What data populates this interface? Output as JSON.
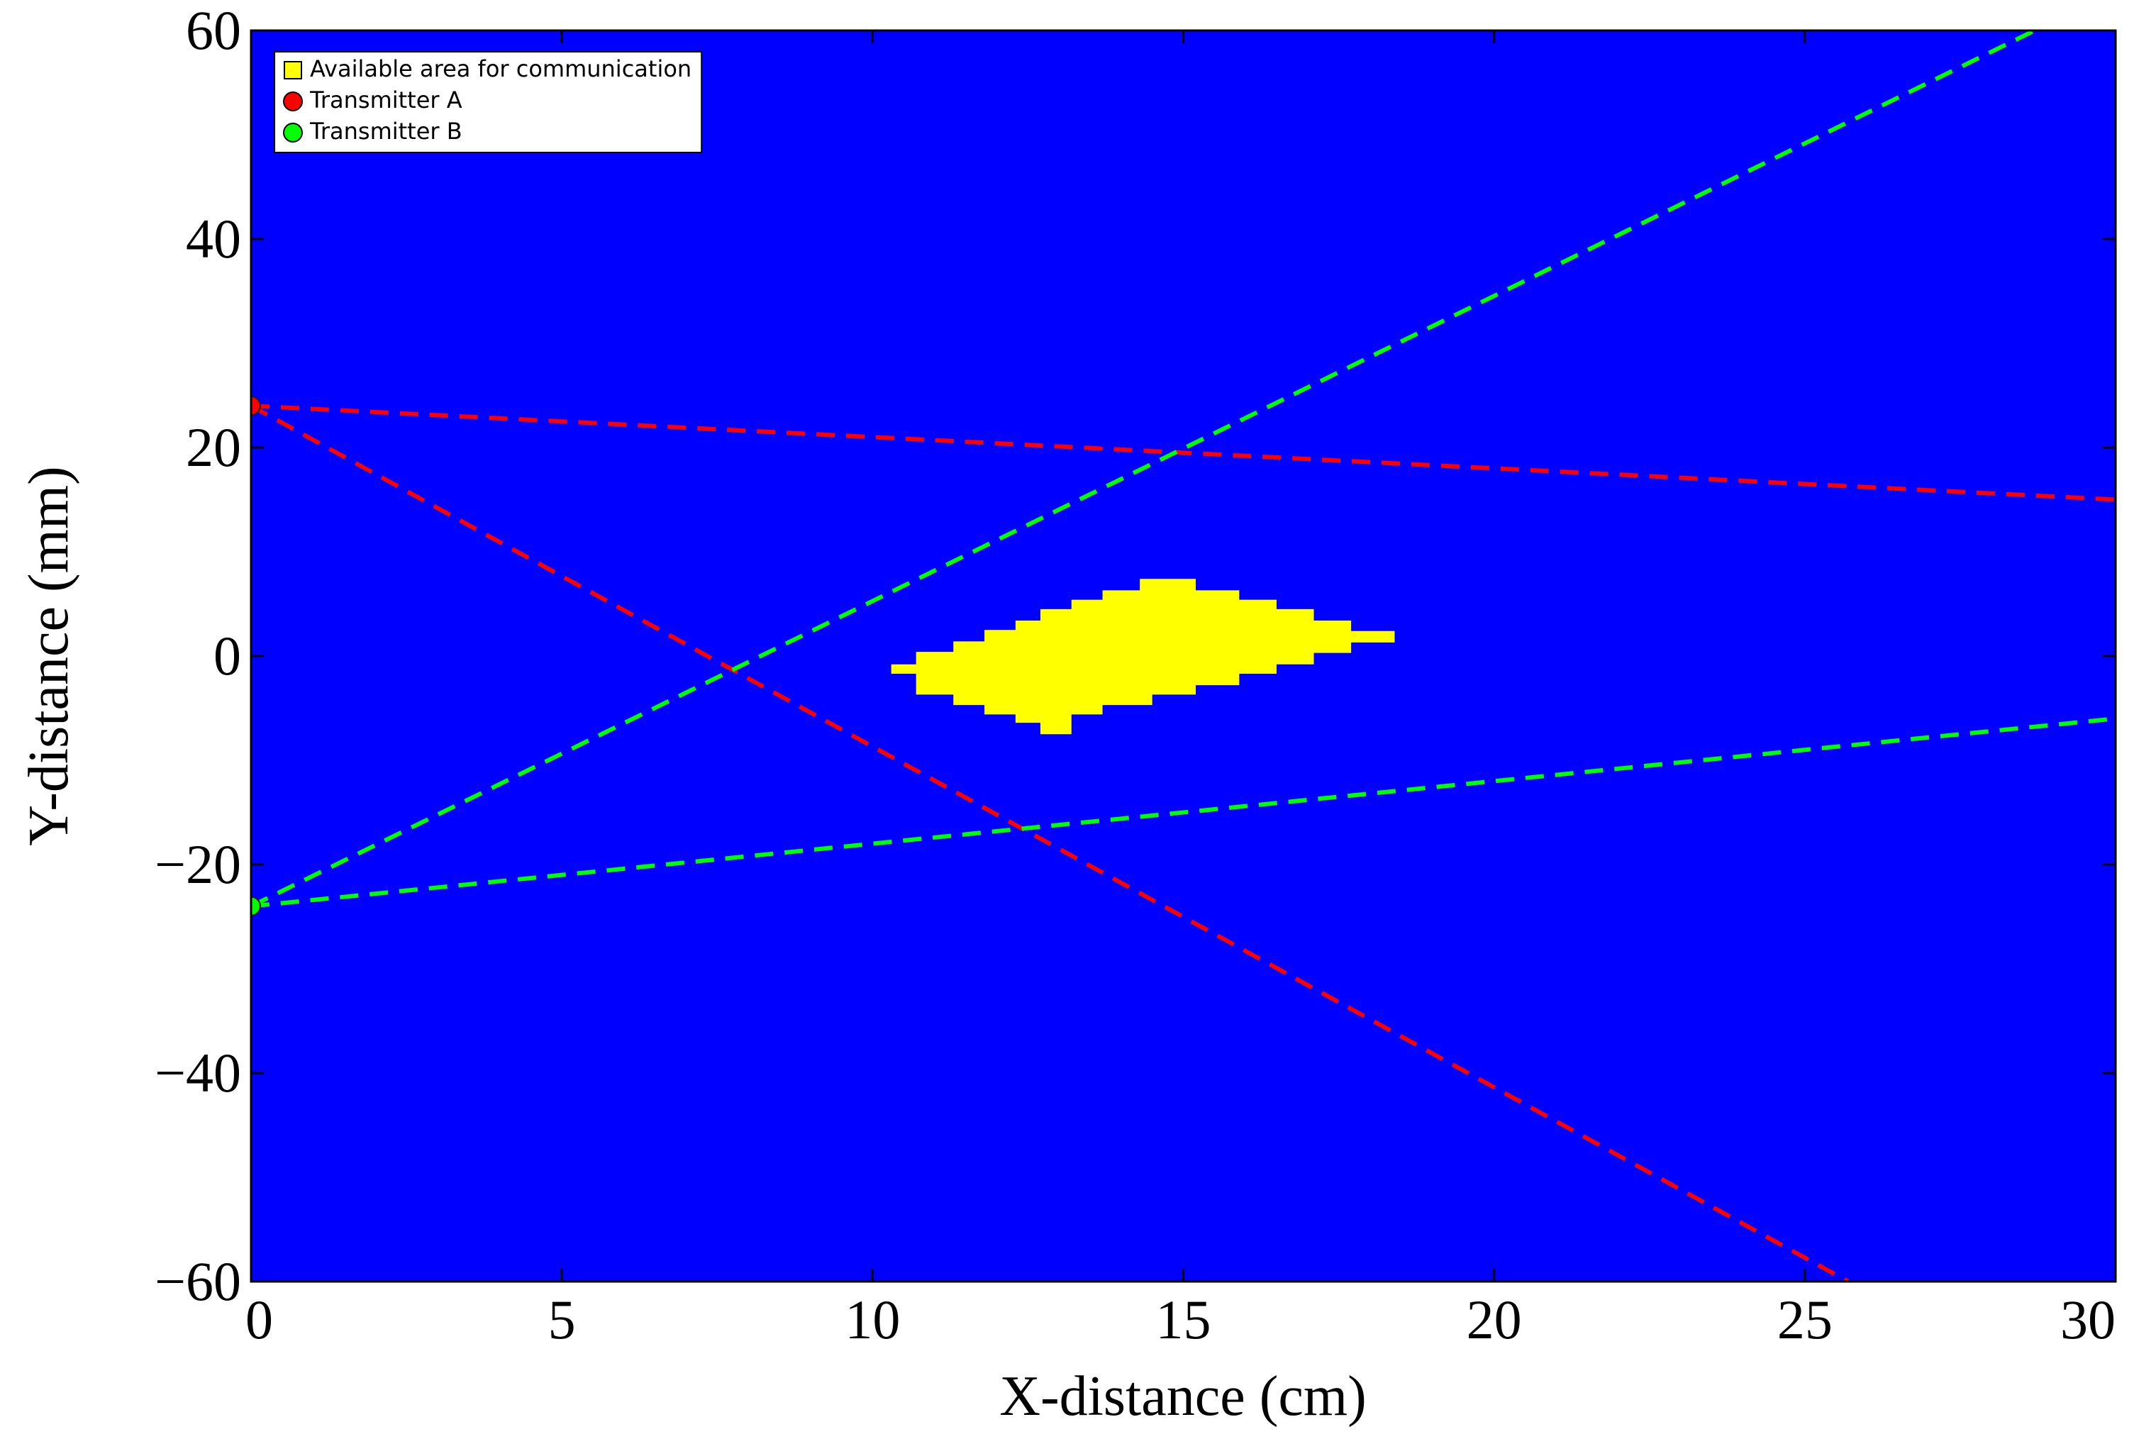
{
  "chart_data": {
    "type": "line",
    "xlabel": "X-distance (cm)",
    "ylabel": "Y-distance (mm)",
    "xlim": [
      0,
      30
    ],
    "ylim": [
      -60,
      60
    ],
    "xticks": [
      0,
      5,
      10,
      15,
      20,
      25,
      30
    ],
    "yticks": [
      {
        "value": -60,
        "label": "−60"
      },
      {
        "value": -40,
        "label": "−40"
      },
      {
        "value": -20,
        "label": "−20"
      },
      0,
      20,
      40,
      60
    ],
    "background": "#0000ff",
    "legend": "upper left",
    "series": [
      {
        "name": "Available area for communication",
        "type": "area",
        "color": "#ffff00",
        "x": [
          10.3,
          10.3,
          10.7,
          10.7,
          11.3,
          11.3,
          11.8,
          11.8,
          12.3,
          12.3,
          12.7,
          12.7,
          13.2,
          13.2,
          13.7,
          13.7,
          14.3,
          14.3,
          15.2,
          15.2,
          15.9,
          15.9,
          16.5,
          16.5,
          17.1,
          17.1,
          17.7,
          17.7,
          18.4,
          18.4,
          17.7,
          17.7,
          17.1,
          17.1,
          16.5,
          16.5,
          15.9,
          15.9,
          15.2,
          15.2,
          14.5,
          14.5,
          13.7,
          13.7,
          13.2,
          13.2,
          12.7,
          12.7,
          12.3,
          12.3,
          11.8,
          11.8,
          11.3,
          11.3,
          10.7,
          10.7
        ],
        "values": [
          -1.7,
          -0.8,
          -0.8,
          0.4,
          0.4,
          1.4,
          1.4,
          2.5,
          2.5,
          3.4,
          3.4,
          4.5,
          4.5,
          5.4,
          5.4,
          6.3,
          6.3,
          7.4,
          7.4,
          6.3,
          6.3,
          5.4,
          5.4,
          4.5,
          4.5,
          3.4,
          3.4,
          2.4,
          2.4,
          1.3,
          1.3,
          0.3,
          0.3,
          -0.8,
          -0.8,
          -1.7,
          -1.7,
          -2.8,
          -2.8,
          -3.7,
          -3.7,
          -4.7,
          -4.7,
          -5.6,
          -5.6,
          -7.5,
          -7.5,
          -6.4,
          -6.4,
          -5.6,
          -5.6,
          -4.7,
          -4.7,
          -3.7,
          -3.7,
          -1.7
        ]
      },
      {
        "name": "Transmitter A",
        "type": "scatter",
        "color": "#ff0000",
        "x": [
          0
        ],
        "values": [
          24
        ]
      },
      {
        "name": "Transmitter B",
        "type": "scatter",
        "color": "#00ff00",
        "x": [
          0
        ],
        "values": [
          -24
        ]
      },
      {
        "type": "line",
        "linestyle": "dashed",
        "color": "#ff0000",
        "x": [
          0,
          30
        ],
        "values": [
          24,
          15
        ]
      },
      {
        "type": "line",
        "linestyle": "dashed",
        "color": "#ff0000",
        "x": [
          0,
          25.7
        ],
        "values": [
          24,
          -60
        ]
      },
      {
        "type": "line",
        "linestyle": "dashed",
        "color": "#00ff00",
        "x": [
          0,
          28.7
        ],
        "values": [
          -24,
          60
        ]
      },
      {
        "type": "line",
        "linestyle": "dashed",
        "color": "#00ff00",
        "x": [
          0,
          30
        ],
        "values": [
          -24,
          -6
        ]
      }
    ]
  }
}
